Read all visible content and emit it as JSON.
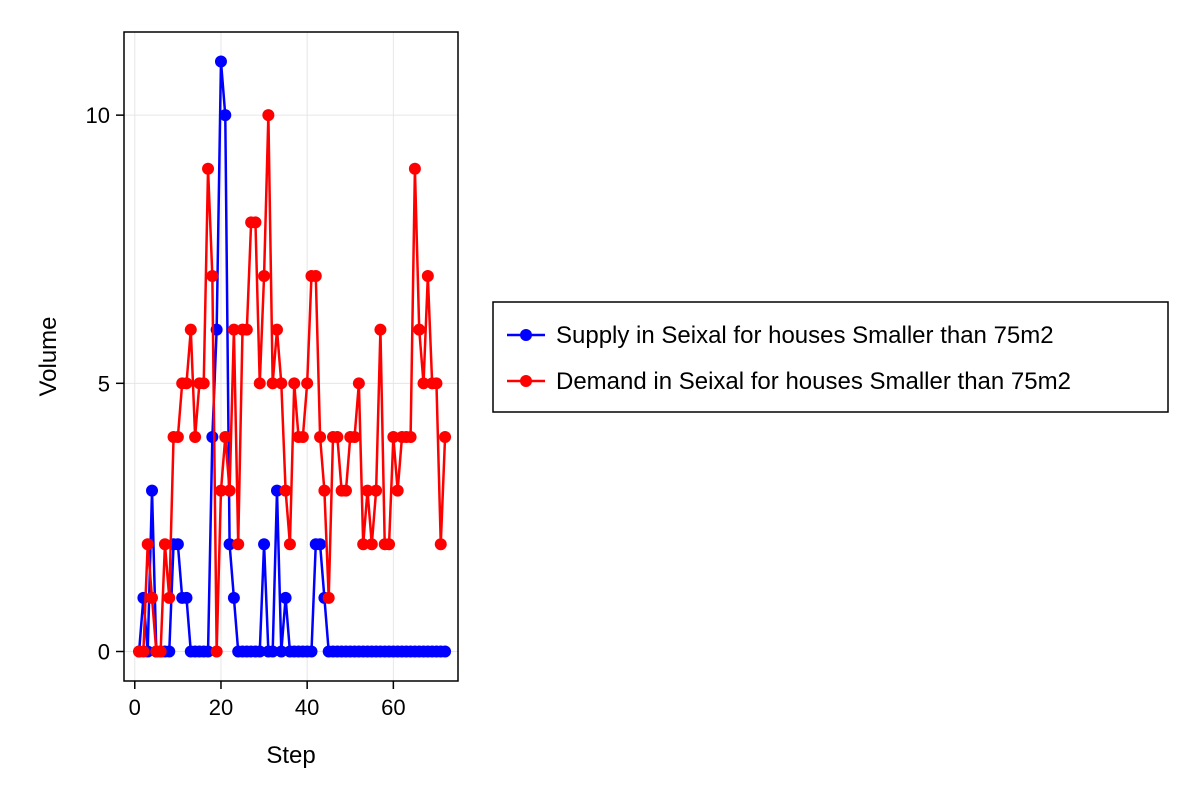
{
  "chart_data": {
    "type": "line",
    "title": "",
    "xlabel": "Step",
    "ylabel": "Volume",
    "xlim": [
      -2.5,
      75
    ],
    "ylim": [
      -0.55,
      11.55
    ],
    "xticks": [
      0,
      20,
      40,
      60
    ],
    "yticks": [
      0,
      5,
      10
    ],
    "grid": true,
    "legend_position": "right",
    "x": [
      1,
      2,
      3,
      4,
      5,
      6,
      7,
      8,
      9,
      10,
      11,
      12,
      13,
      14,
      15,
      16,
      17,
      18,
      19,
      20,
      21,
      22,
      23,
      24,
      25,
      26,
      27,
      28,
      29,
      30,
      31,
      32,
      33,
      34,
      35,
      36,
      37,
      38,
      39,
      40,
      41,
      42,
      43,
      44,
      45,
      46,
      47,
      48,
      49,
      50,
      51,
      52,
      53,
      54,
      55,
      56,
      57,
      58,
      59,
      60,
      61,
      62,
      63,
      64,
      65,
      66,
      67,
      68,
      69,
      70,
      71,
      72
    ],
    "series": [
      {
        "name": "Supply in Seixal for houses Smaller than 75m2",
        "color": "#0000ff",
        "values": [
          0,
          1,
          0,
          3,
          0,
          0,
          0,
          0,
          2,
          2,
          1,
          1,
          0,
          0,
          0,
          0,
          0,
          4,
          6,
          11,
          10,
          2,
          1,
          0,
          0,
          0,
          0,
          0,
          0,
          2,
          0,
          0,
          3,
          0,
          1,
          0,
          0,
          0,
          0,
          0,
          0,
          2,
          2,
          1,
          0,
          0,
          0,
          0,
          0,
          0,
          0,
          0,
          0,
          0,
          0,
          0,
          0,
          0,
          0,
          0,
          0,
          0,
          0,
          0,
          0,
          0,
          0,
          0,
          0,
          0,
          0,
          0
        ]
      },
      {
        "name": "Demand in Seixal for houses Smaller than 75m2",
        "color": "#ff0000",
        "values": [
          0,
          0,
          2,
          1,
          0,
          0,
          2,
          1,
          4,
          4,
          5,
          5,
          6,
          4,
          5,
          5,
          9,
          7,
          0,
          3,
          4,
          3,
          6,
          2,
          6,
          6,
          8,
          8,
          5,
          7,
          10,
          5,
          6,
          5,
          3,
          2,
          5,
          4,
          4,
          5,
          7,
          7,
          4,
          3,
          1,
          4,
          4,
          3,
          3,
          4,
          4,
          5,
          2,
          3,
          2,
          3,
          6,
          2,
          2,
          4,
          3,
          4,
          4,
          4,
          9,
          6,
          5,
          7,
          5,
          5,
          2,
          4
        ]
      }
    ]
  }
}
